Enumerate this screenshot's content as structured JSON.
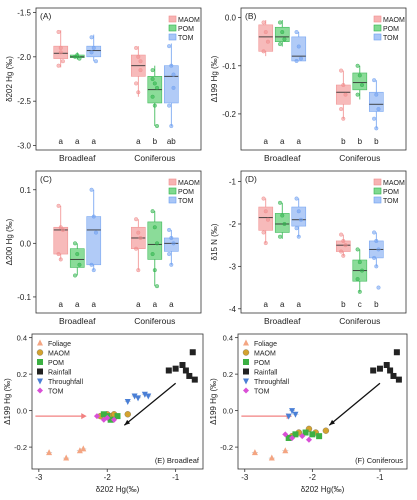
{
  "colors": {
    "MAOM": "#f08c8c",
    "POM": "#2db34a",
    "TOM": "#6d9ff0",
    "Foliage": "#f4a582",
    "Rainfall": "#222222",
    "Throughfall": "#4a7fd6",
    "MAOM_s": "#d4a32f",
    "POM_s": "#3cb043",
    "TOM_s": "#d94fd6",
    "arrow_red": "#f28080",
    "arrow_black": "#111111"
  },
  "legend_box": [
    "MAOM",
    "POM",
    "TOM"
  ],
  "legend_scatter": [
    "Foliage",
    "MAOM",
    "POM",
    "Rainfall",
    "Throughfall",
    "TOM"
  ],
  "chart_data": [
    {
      "type": "box",
      "panel": "(A)",
      "ylabel": "δ202 Hg (‰)",
      "ylim": [
        -3.05,
        -1.45
      ],
      "yticks": [
        "-3.0",
        "-2.5",
        "-2.0",
        "-1.5"
      ],
      "ytick_values": [
        -3.0,
        -2.5,
        -2.0,
        -1.5
      ],
      "groups": [
        "Broadleaf",
        "Coniferous"
      ],
      "series": [
        "MAOM",
        "POM",
        "TOM"
      ],
      "boxes": [
        {
          "group": 0,
          "s": 0,
          "min": -2.12,
          "q1": -2.02,
          "med": -1.96,
          "q3": -1.88,
          "max": -1.7
        },
        {
          "group": 0,
          "s": 1,
          "min": -2.03,
          "q1": -2.01,
          "med": -2.0,
          "q3": -1.98,
          "max": -1.95
        },
        {
          "group": 0,
          "s": 2,
          "min": -2.05,
          "q1": -2.0,
          "med": -1.93,
          "q3": -1.88,
          "max": -1.75
        },
        {
          "group": 1,
          "s": 0,
          "min": -2.45,
          "q1": -2.22,
          "med": -2.1,
          "q3": -1.98,
          "max": -1.88
        },
        {
          "group": 1,
          "s": 1,
          "min": -2.78,
          "q1": -2.52,
          "med": -2.37,
          "q3": -2.22,
          "max": -2.1
        },
        {
          "group": 1,
          "s": 2,
          "min": -2.78,
          "q1": -2.52,
          "med": -2.22,
          "q3": -2.1,
          "max": -1.85
        }
      ],
      "points": [
        [
          [
            -1.72,
            -1.95,
            -2.05,
            -2.1,
            -1.9
          ],
          [
            -2.0,
            -1.98,
            -2.02
          ],
          [
            -1.78,
            -1.9,
            -2.05,
            -1.95
          ]
        ],
        [
          [
            -1.9,
            -2.0,
            -2.15,
            -2.3,
            -2.4,
            -2.05
          ],
          [
            -2.15,
            -2.3,
            -2.35,
            -2.45,
            -2.55,
            -2.78,
            -2.25
          ],
          [
            -1.88,
            -2.1,
            -2.35,
            -2.55,
            -2.78,
            -2.2
          ]
        ]
      ],
      "letters": [
        [
          "a",
          "a",
          "a"
        ],
        [
          "a",
          "b",
          "ab"
        ]
      ]
    },
    {
      "type": "box",
      "panel": "(B)",
      "ylabel": "Δ199 Hg (‰)",
      "ylim": [
        -0.275,
        0.02
      ],
      "yticks": [
        "-0.2",
        "-0.1",
        "0.0"
      ],
      "ytick_values": [
        -0.2,
        -0.1,
        0.0
      ],
      "groups": [
        "Broadleaf",
        "Coniferous"
      ],
      "series": [
        "MAOM",
        "POM",
        "TOM"
      ],
      "boxes": [
        {
          "group": 0,
          "s": 0,
          "min": -0.08,
          "q1": -0.07,
          "med": -0.04,
          "q3": -0.015,
          "max": -0.005
        },
        {
          "group": 0,
          "s": 1,
          "min": -0.06,
          "q1": -0.05,
          "med": -0.04,
          "q3": -0.02,
          "max": -0.005
        },
        {
          "group": 0,
          "s": 2,
          "min": -0.09,
          "q1": -0.09,
          "med": -0.08,
          "q3": -0.04,
          "max": -0.03
        },
        {
          "group": 1,
          "s": 0,
          "min": -0.21,
          "q1": -0.18,
          "med": -0.155,
          "q3": -0.14,
          "max": -0.11
        },
        {
          "group": 1,
          "s": 1,
          "min": -0.17,
          "q1": -0.15,
          "med": -0.135,
          "q3": -0.115,
          "max": -0.1
        },
        {
          "group": 1,
          "s": 2,
          "min": -0.23,
          "q1": -0.195,
          "med": -0.18,
          "q3": -0.155,
          "max": -0.13
        }
      ],
      "points": [
        [
          [
            -0.01,
            -0.03,
            -0.05,
            -0.07
          ],
          [
            -0.01,
            -0.03,
            -0.045,
            -0.055
          ],
          [
            -0.03,
            -0.06,
            -0.085,
            -0.09
          ]
        ],
        [
          [
            -0.11,
            -0.14,
            -0.16,
            -0.19,
            -0.21
          ],
          [
            -0.1,
            -0.12,
            -0.14,
            -0.16
          ],
          [
            -0.13,
            -0.16,
            -0.19,
            -0.21,
            -0.23
          ]
        ]
      ],
      "letters": [
        [
          "a",
          "a",
          "a"
        ],
        [
          "b",
          "b",
          "b"
        ]
      ]
    },
    {
      "type": "box",
      "panel": "(C)",
      "ylabel": "Δ200 Hg (‰)",
      "ylim": [
        -0.13,
        0.135
      ],
      "yticks": [
        "-0.1",
        "0.0",
        "0.1"
      ],
      "ytick_values": [
        -0.1,
        0.0,
        0.1
      ],
      "groups": [
        "Broadleaf",
        "Coniferous"
      ],
      "series": [
        "MAOM",
        "POM",
        "TOM"
      ],
      "boxes": [
        {
          "group": 0,
          "s": 0,
          "min": -0.03,
          "q1": -0.02,
          "med": 0.025,
          "q3": 0.03,
          "max": 0.07
        },
        {
          "group": 0,
          "s": 1,
          "min": -0.06,
          "q1": -0.045,
          "med": -0.03,
          "q3": -0.01,
          "max": 0.0
        },
        {
          "group": 0,
          "s": 2,
          "min": -0.05,
          "q1": -0.04,
          "med": 0.025,
          "q3": 0.05,
          "max": 0.1
        },
        {
          "group": 1,
          "s": 0,
          "min": -0.05,
          "q1": -0.01,
          "med": 0.01,
          "q3": 0.03,
          "max": 0.045
        },
        {
          "group": 1,
          "s": 1,
          "min": -0.08,
          "q1": -0.03,
          "med": -0.002,
          "q3": 0.04,
          "max": 0.06
        },
        {
          "group": 1,
          "s": 2,
          "min": -0.04,
          "q1": -0.015,
          "med": 0.0,
          "q3": 0.01,
          "max": 0.025
        }
      ],
      "points": [
        [
          [
            0.07,
            0.03,
            0.025,
            -0.02,
            -0.03
          ],
          [
            0.0,
            -0.02,
            -0.04,
            -0.06
          ],
          [
            0.1,
            0.05,
            0.02,
            -0.04,
            -0.05
          ]
        ],
        [
          [
            0.045,
            0.02,
            0.01,
            -0.01,
            -0.05
          ],
          [
            0.06,
            0.03,
            0.0,
            -0.02,
            -0.05,
            -0.08
          ],
          [
            0.025,
            0.01,
            0.0,
            -0.02,
            -0.04
          ]
        ]
      ],
      "letters": [
        [
          "a",
          "a",
          "a"
        ],
        [
          "a",
          "a",
          "a"
        ]
      ]
    },
    {
      "type": "box",
      "panel": "(D)",
      "ylabel": "δ15 N (‰)",
      "ylim": [
        -4.1,
        -0.75
      ],
      "yticks": [
        "-4",
        "-3",
        "-2",
        "-1"
      ],
      "ytick_values": [
        -4,
        -3,
        -2,
        -1
      ],
      "groups": [
        "Broadleaf",
        "Coniferous"
      ],
      "series": [
        "MAOM",
        "POM",
        "TOM"
      ],
      "boxes": [
        {
          "group": 0,
          "s": 0,
          "min": -2.45,
          "q1": -2.15,
          "med": -1.85,
          "q3": -1.6,
          "max": -1.4
        },
        {
          "group": 0,
          "s": 1,
          "min": -2.35,
          "q1": -2.2,
          "med": -2.0,
          "q3": -1.75,
          "max": -1.5
        },
        {
          "group": 0,
          "s": 2,
          "min": -2.3,
          "q1": -2.05,
          "med": -1.9,
          "q3": -1.6,
          "max": -1.4
        },
        {
          "group": 1,
          "s": 0,
          "min": -2.75,
          "q1": -2.65,
          "med": -2.5,
          "q3": -2.4,
          "max": -2.25
        },
        {
          "group": 1,
          "s": 1,
          "min": -3.6,
          "q1": -3.35,
          "med": -3.1,
          "q3": -2.85,
          "max": -2.6
        },
        {
          "group": 1,
          "s": 2,
          "min": -3.0,
          "q1": -2.8,
          "med": -2.6,
          "q3": -2.4,
          "max": -2.2
        }
      ],
      "points": [
        [
          [
            -1.4,
            -1.7,
            -1.9,
            -2.2,
            -2.45
          ],
          [
            -1.5,
            -1.8,
            -2.0,
            -2.3
          ],
          [
            -1.4,
            -1.7,
            -1.9,
            -2.1,
            -2.3
          ]
        ],
        [
          [
            -2.25,
            -2.4,
            -2.5,
            -2.65,
            -2.75
          ],
          [
            -2.6,
            -2.9,
            -3.1,
            -3.3,
            -3.6
          ],
          [
            -2.2,
            -2.4,
            -2.6,
            -2.8,
            -3.0,
            -3.5
          ]
        ]
      ],
      "letters": [
        [
          "a",
          "a",
          "a"
        ],
        [
          "b",
          "c",
          "b"
        ]
      ]
    },
    {
      "type": "scatter",
      "panel": "(E) Broadleaf",
      "xlabel": "δ202 Hg(‰)",
      "ylabel": "Δ199 Hg (‰)",
      "xlim": [
        -3.1,
        -0.6
      ],
      "ylim": [
        -0.32,
        0.42
      ],
      "xticks": [
        "-3",
        "-2",
        "-1"
      ],
      "xtick_values": [
        -3,
        -2,
        -1
      ],
      "yticks": [
        "-0.2",
        "0.0",
        "0.2",
        "0.4"
      ],
      "ytick_values": [
        -0.2,
        0.0,
        0.2,
        0.4
      ],
      "series": [
        {
          "name": "Foliage",
          "shape": "triangle",
          "points": [
            [
              -2.85,
              -0.23
            ],
            [
              -2.6,
              -0.26
            ],
            [
              -2.4,
              -0.22
            ],
            [
              -2.35,
              -0.21
            ]
          ]
        },
        {
          "name": "MAOM",
          "shape": "circle",
          "points": [
            [
              -2.1,
              -0.03
            ],
            [
              -2.0,
              -0.02
            ],
            [
              -1.95,
              -0.03
            ],
            [
              -1.9,
              -0.02
            ],
            [
              -1.7,
              -0.02
            ]
          ]
        },
        {
          "name": "POM",
          "shape": "square",
          "points": [
            [
              -2.05,
              -0.02
            ],
            [
              -2.0,
              -0.03
            ],
            [
              -1.95,
              -0.05
            ],
            [
              -1.85,
              -0.03
            ]
          ]
        },
        {
          "name": "Rainfall",
          "shape": "square",
          "points": [
            [
              -0.75,
              0.32
            ],
            [
              -1.0,
              0.23
            ],
            [
              -0.9,
              0.25
            ],
            [
              -0.85,
              0.22
            ],
            [
              -0.8,
              0.19
            ],
            [
              -0.72,
              0.17
            ],
            [
              -1.1,
              0.22
            ]
          ]
        },
        {
          "name": "Throughfall",
          "shape": "triangle-down",
          "points": [
            [
              -1.7,
              0.05
            ],
            [
              -1.6,
              0.08
            ],
            [
              -1.55,
              0.07
            ],
            [
              -1.45,
              0.09
            ],
            [
              -1.4,
              0.08
            ]
          ]
        },
        {
          "name": "TOM",
          "shape": "diamond",
          "points": [
            [
              -2.15,
              -0.03
            ],
            [
              -2.05,
              -0.05
            ],
            [
              -2.0,
              -0.04
            ],
            [
              -1.9,
              -0.05
            ]
          ]
        }
      ]
    },
    {
      "type": "scatter",
      "panel": "(F) Coniferous",
      "xlabel": "δ202 Hg(‰)",
      "ylabel": "Δ199 Hg (‰)",
      "xlim": [
        -3.1,
        -0.6
      ],
      "ylim": [
        -0.32,
        0.42
      ],
      "xticks": [
        "-3",
        "-2",
        "-1"
      ],
      "xtick_values": [
        -3,
        -2,
        -1
      ],
      "yticks": [
        "-0.2",
        "0.0",
        "0.2",
        "0.4"
      ],
      "ytick_values": [
        -0.2,
        0.0,
        0.2,
        0.4
      ],
      "series": [
        {
          "name": "Foliage",
          "shape": "triangle",
          "points": [
            [
              -2.85,
              -0.23
            ],
            [
              -2.6,
              -0.26
            ],
            [
              -2.4,
              -0.22
            ]
          ]
        },
        {
          "name": "MAOM",
          "shape": "circle",
          "points": [
            [
              -2.3,
              -0.14
            ],
            [
              -2.2,
              -0.12
            ],
            [
              -2.05,
              -0.1
            ],
            [
              -1.95,
              -0.12
            ],
            [
              -1.8,
              -0.11
            ]
          ]
        },
        {
          "name": "POM",
          "shape": "square",
          "points": [
            [
              -2.35,
              -0.15
            ],
            [
              -2.25,
              -0.13
            ],
            [
              -2.1,
              -0.12
            ],
            [
              -2.0,
              -0.13
            ],
            [
              -1.9,
              -0.14
            ]
          ]
        },
        {
          "name": "Rainfall",
          "shape": "square",
          "points": [
            [
              -0.75,
              0.32
            ],
            [
              -1.0,
              0.23
            ],
            [
              -0.9,
              0.25
            ],
            [
              -0.85,
              0.22
            ],
            [
              -0.8,
              0.19
            ],
            [
              -0.72,
              0.17
            ],
            [
              -1.1,
              0.22
            ]
          ]
        },
        {
          "name": "Throughfall",
          "shape": "triangle-down",
          "points": [
            [
              -2.35,
              -0.03
            ],
            [
              -2.3,
              0.0
            ],
            [
              -2.25,
              -0.02
            ]
          ]
        },
        {
          "name": "TOM",
          "shape": "diamond",
          "points": [
            [
              -2.4,
              -0.13
            ],
            [
              -2.3,
              -0.15
            ],
            [
              -2.15,
              -0.14
            ],
            [
              -2.05,
              -0.16
            ]
          ]
        }
      ]
    }
  ]
}
